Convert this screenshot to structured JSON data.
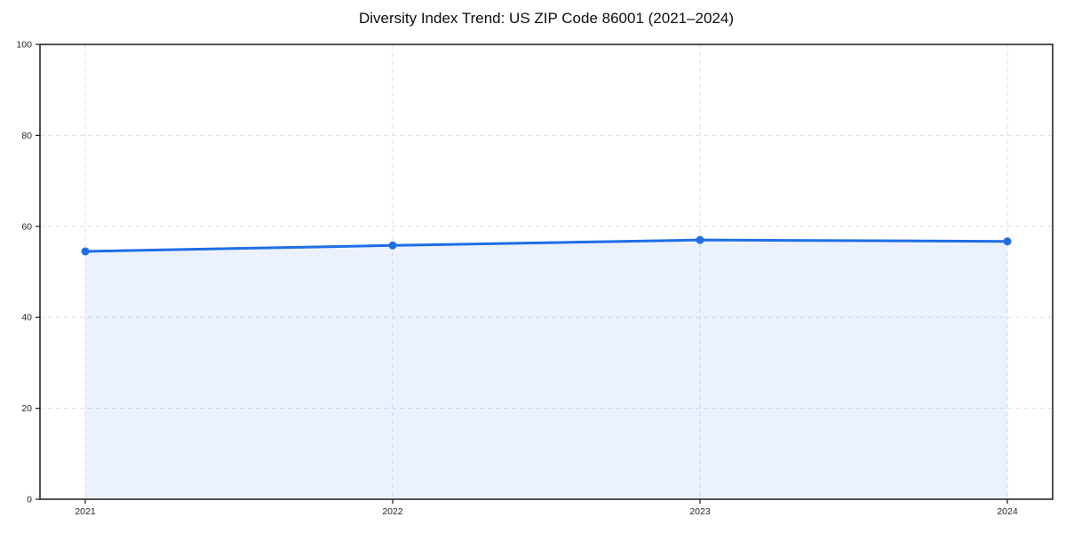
{
  "chart_data": {
    "type": "line",
    "title": "Diversity Index Trend: US ZIP Code 86001 (2021–2024)",
    "categories": [
      "2021",
      "2022",
      "2023",
      "2024"
    ],
    "series": [
      {
        "name": "Diversity Index",
        "values": [
          54.5,
          55.8,
          57.0,
          56.7
        ]
      }
    ],
    "xlabel": "",
    "ylabel": "",
    "ylim": [
      0,
      100
    ],
    "yticks": [
      0,
      20,
      40,
      60,
      80,
      100
    ],
    "grid": true,
    "grid_style": "dashed",
    "legend_position": "none",
    "marker": "circle",
    "colors": {
      "line": "#1e6ee6",
      "marker": "#1e6ee6",
      "area_fill": "#1e6ee6",
      "area_opacity": 0.09,
      "grid": "#dedede",
      "axis": "#1a1a1a",
      "tick_label": "#262626",
      "title": "#0d0d0d",
      "background": "#ffffff"
    }
  }
}
